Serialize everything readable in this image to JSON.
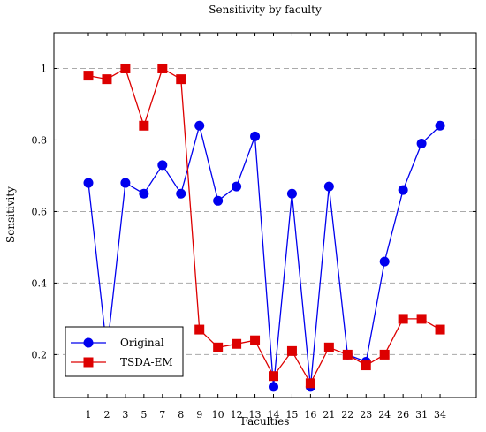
{
  "chart_data": {
    "type": "line",
    "title": "Sensitivity by faculty",
    "xlabel": "Faculties",
    "ylabel": "Sensitivity",
    "categories": [
      "1",
      "2",
      "3",
      "5",
      "7",
      "8",
      "9",
      "10",
      "12",
      "13",
      "14",
      "15",
      "16",
      "21",
      "22",
      "23",
      "24",
      "26",
      "31",
      "34"
    ],
    "ylim": [
      0.08,
      1.1
    ],
    "yticks": [
      "0.2",
      "0.4",
      "0.6",
      "0.8",
      "1"
    ],
    "grid": "horizontal-dashed",
    "legend_position": "bottom-left",
    "series": [
      {
        "name": "Original",
        "color": "#0000ee",
        "marker": "circle",
        "values": [
          0.68,
          0.21,
          0.68,
          0.65,
          0.73,
          0.65,
          0.84,
          0.63,
          0.67,
          0.81,
          0.11,
          0.65,
          0.11,
          0.67,
          0.2,
          0.18,
          0.46,
          0.66,
          0.79,
          0.84
        ]
      },
      {
        "name": "TSDA-EM",
        "color": "#dd0000",
        "marker": "square",
        "values": [
          0.98,
          0.97,
          1.0,
          0.84,
          1.0,
          0.97,
          0.27,
          0.22,
          0.23,
          0.24,
          0.14,
          0.21,
          0.12,
          0.22,
          0.2,
          0.17,
          0.2,
          0.3,
          0.3,
          0.27
        ]
      }
    ]
  }
}
